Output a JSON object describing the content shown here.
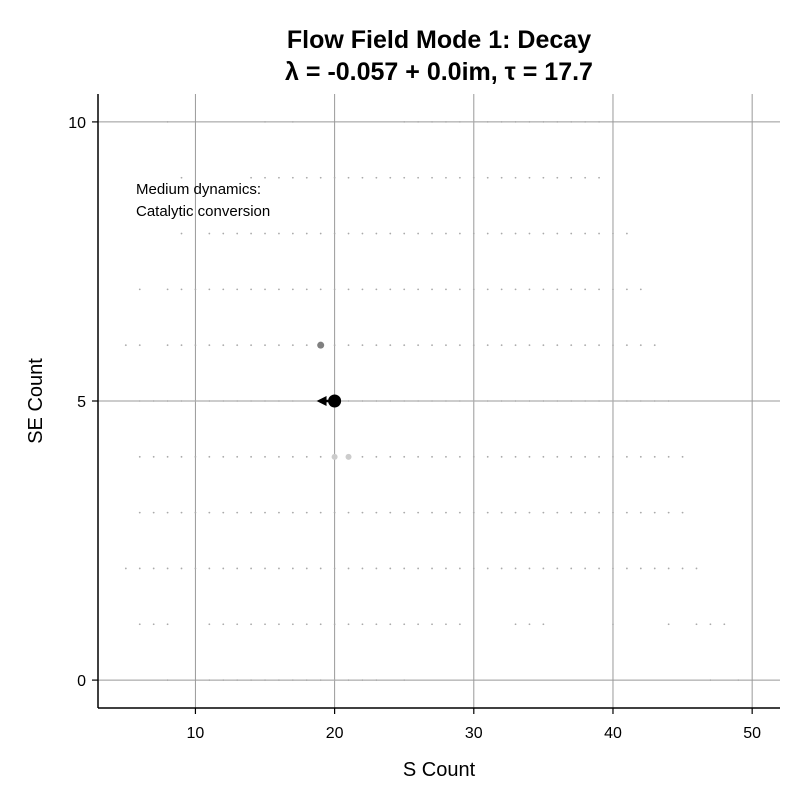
{
  "chart_data": {
    "type": "scatter",
    "title_line1": "Flow Field Mode 1: Decay",
    "title_line2": "λ = -0.057 + 0.0im, τ = 17.7",
    "xlabel": "S Count",
    "ylabel": "SE Count",
    "xlim": [
      3,
      52
    ],
    "ylim": [
      -0.5,
      10.5
    ],
    "xticks": [
      10,
      20,
      30,
      40,
      50
    ],
    "yticks": [
      0,
      5,
      10
    ],
    "xtick_labels": [
      "10",
      "20",
      "30",
      "40",
      "50"
    ],
    "ytick_labels": [
      "0",
      "5",
      "10"
    ],
    "grid": true,
    "annotation": {
      "lines": [
        "Medium dynamics:",
        "Catalytic conversion"
      ]
    },
    "colors": {
      "grid": "#999999",
      "field_points": "#aaaaaa",
      "highlight_dark": "#808080",
      "highlight_light": "#cccccc",
      "current_state": "#000000"
    },
    "field_rows": [
      {
        "y": 10,
        "x": [
          8,
          15,
          17,
          25,
          26,
          27,
          28,
          29,
          30,
          31,
          32,
          33,
          34,
          35,
          36,
          37,
          38,
          39
        ]
      },
      {
        "y": 9,
        "x": [
          9,
          14,
          15,
          16,
          17,
          18,
          19,
          20,
          21,
          22,
          23,
          24,
          25,
          26,
          27,
          28,
          29,
          30,
          31,
          32,
          33,
          34,
          35,
          36,
          37,
          38,
          39
        ]
      },
      {
        "y": 8,
        "x": [
          9,
          11,
          12,
          13,
          14,
          15,
          16,
          17,
          18,
          19,
          20,
          21,
          22,
          23,
          24,
          25,
          26,
          27,
          28,
          29,
          30,
          31,
          32,
          33,
          34,
          35,
          36,
          37,
          38,
          39,
          40,
          41
        ]
      },
      {
        "y": 7,
        "x": [
          6,
          8,
          9,
          10,
          11,
          12,
          13,
          14,
          15,
          16,
          17,
          18,
          19,
          20,
          21,
          22,
          23,
          24,
          25,
          26,
          27,
          28,
          29,
          30,
          31,
          32,
          33,
          34,
          35,
          36,
          37,
          38,
          39,
          40,
          41,
          42
        ]
      },
      {
        "y": 6,
        "x": [
          5,
          6,
          8,
          9,
          10,
          11,
          12,
          13,
          14,
          15,
          16,
          17,
          18,
          20,
          21,
          22,
          23,
          24,
          25,
          26,
          27,
          28,
          29,
          30,
          31,
          32,
          33,
          34,
          35,
          36,
          37,
          38,
          39,
          40,
          41,
          42,
          43
        ]
      },
      {
        "y": 5,
        "x": [
          6,
          7,
          8,
          9,
          10,
          11,
          12,
          13,
          14,
          15,
          16,
          17,
          21,
          22,
          23,
          24,
          25,
          26,
          27,
          28,
          29,
          30,
          31,
          32,
          33,
          34,
          35,
          36,
          37,
          38,
          39,
          40,
          41,
          42,
          43,
          44
        ]
      },
      {
        "y": 4,
        "x": [
          6,
          7,
          8,
          9,
          10,
          11,
          12,
          13,
          14,
          15,
          16,
          17,
          18,
          19,
          22,
          23,
          24,
          25,
          26,
          27,
          28,
          29,
          30,
          31,
          32,
          33,
          34,
          35,
          36,
          37,
          38,
          39,
          40,
          41,
          42,
          43,
          44,
          45
        ]
      },
      {
        "y": 3,
        "x": [
          6,
          7,
          8,
          9,
          10,
          11,
          12,
          13,
          14,
          15,
          16,
          17,
          18,
          19,
          20,
          21,
          22,
          23,
          24,
          25,
          26,
          27,
          28,
          29,
          30,
          31,
          32,
          33,
          34,
          35,
          36,
          37,
          38,
          39,
          40,
          41,
          42,
          43,
          44,
          45
        ]
      },
      {
        "y": 2,
        "x": [
          5,
          6,
          7,
          8,
          9,
          10,
          11,
          12,
          13,
          14,
          15,
          16,
          17,
          18,
          19,
          20,
          21,
          22,
          23,
          24,
          25,
          26,
          27,
          28,
          29,
          30,
          31,
          32,
          33,
          34,
          35,
          36,
          37,
          38,
          39,
          40,
          41,
          42,
          43,
          44,
          45,
          46
        ]
      },
      {
        "y": 1,
        "x": [
          6,
          7,
          8,
          11,
          12,
          13,
          14,
          15,
          16,
          17,
          18,
          19,
          20,
          21,
          22,
          23,
          24,
          25,
          26,
          27,
          28,
          29,
          33,
          34,
          35,
          40,
          44,
          46,
          47,
          48
        ]
      },
      {
        "y": 0,
        "x": [
          8,
          11,
          12,
          13,
          14,
          15,
          16,
          17,
          18,
          19,
          20,
          21,
          22,
          23,
          25,
          47,
          49
        ]
      }
    ],
    "highlight_points": [
      {
        "x": 19,
        "y": 6,
        "shade": "dark"
      },
      {
        "x": 20,
        "y": 4,
        "shade": "light"
      },
      {
        "x": 21,
        "y": 4,
        "shade": "light"
      }
    ],
    "current_state": {
      "x": 20,
      "y": 5
    },
    "flow_arrow": {
      "from": [
        20,
        5
      ],
      "to": [
        18.7,
        5
      ]
    }
  }
}
